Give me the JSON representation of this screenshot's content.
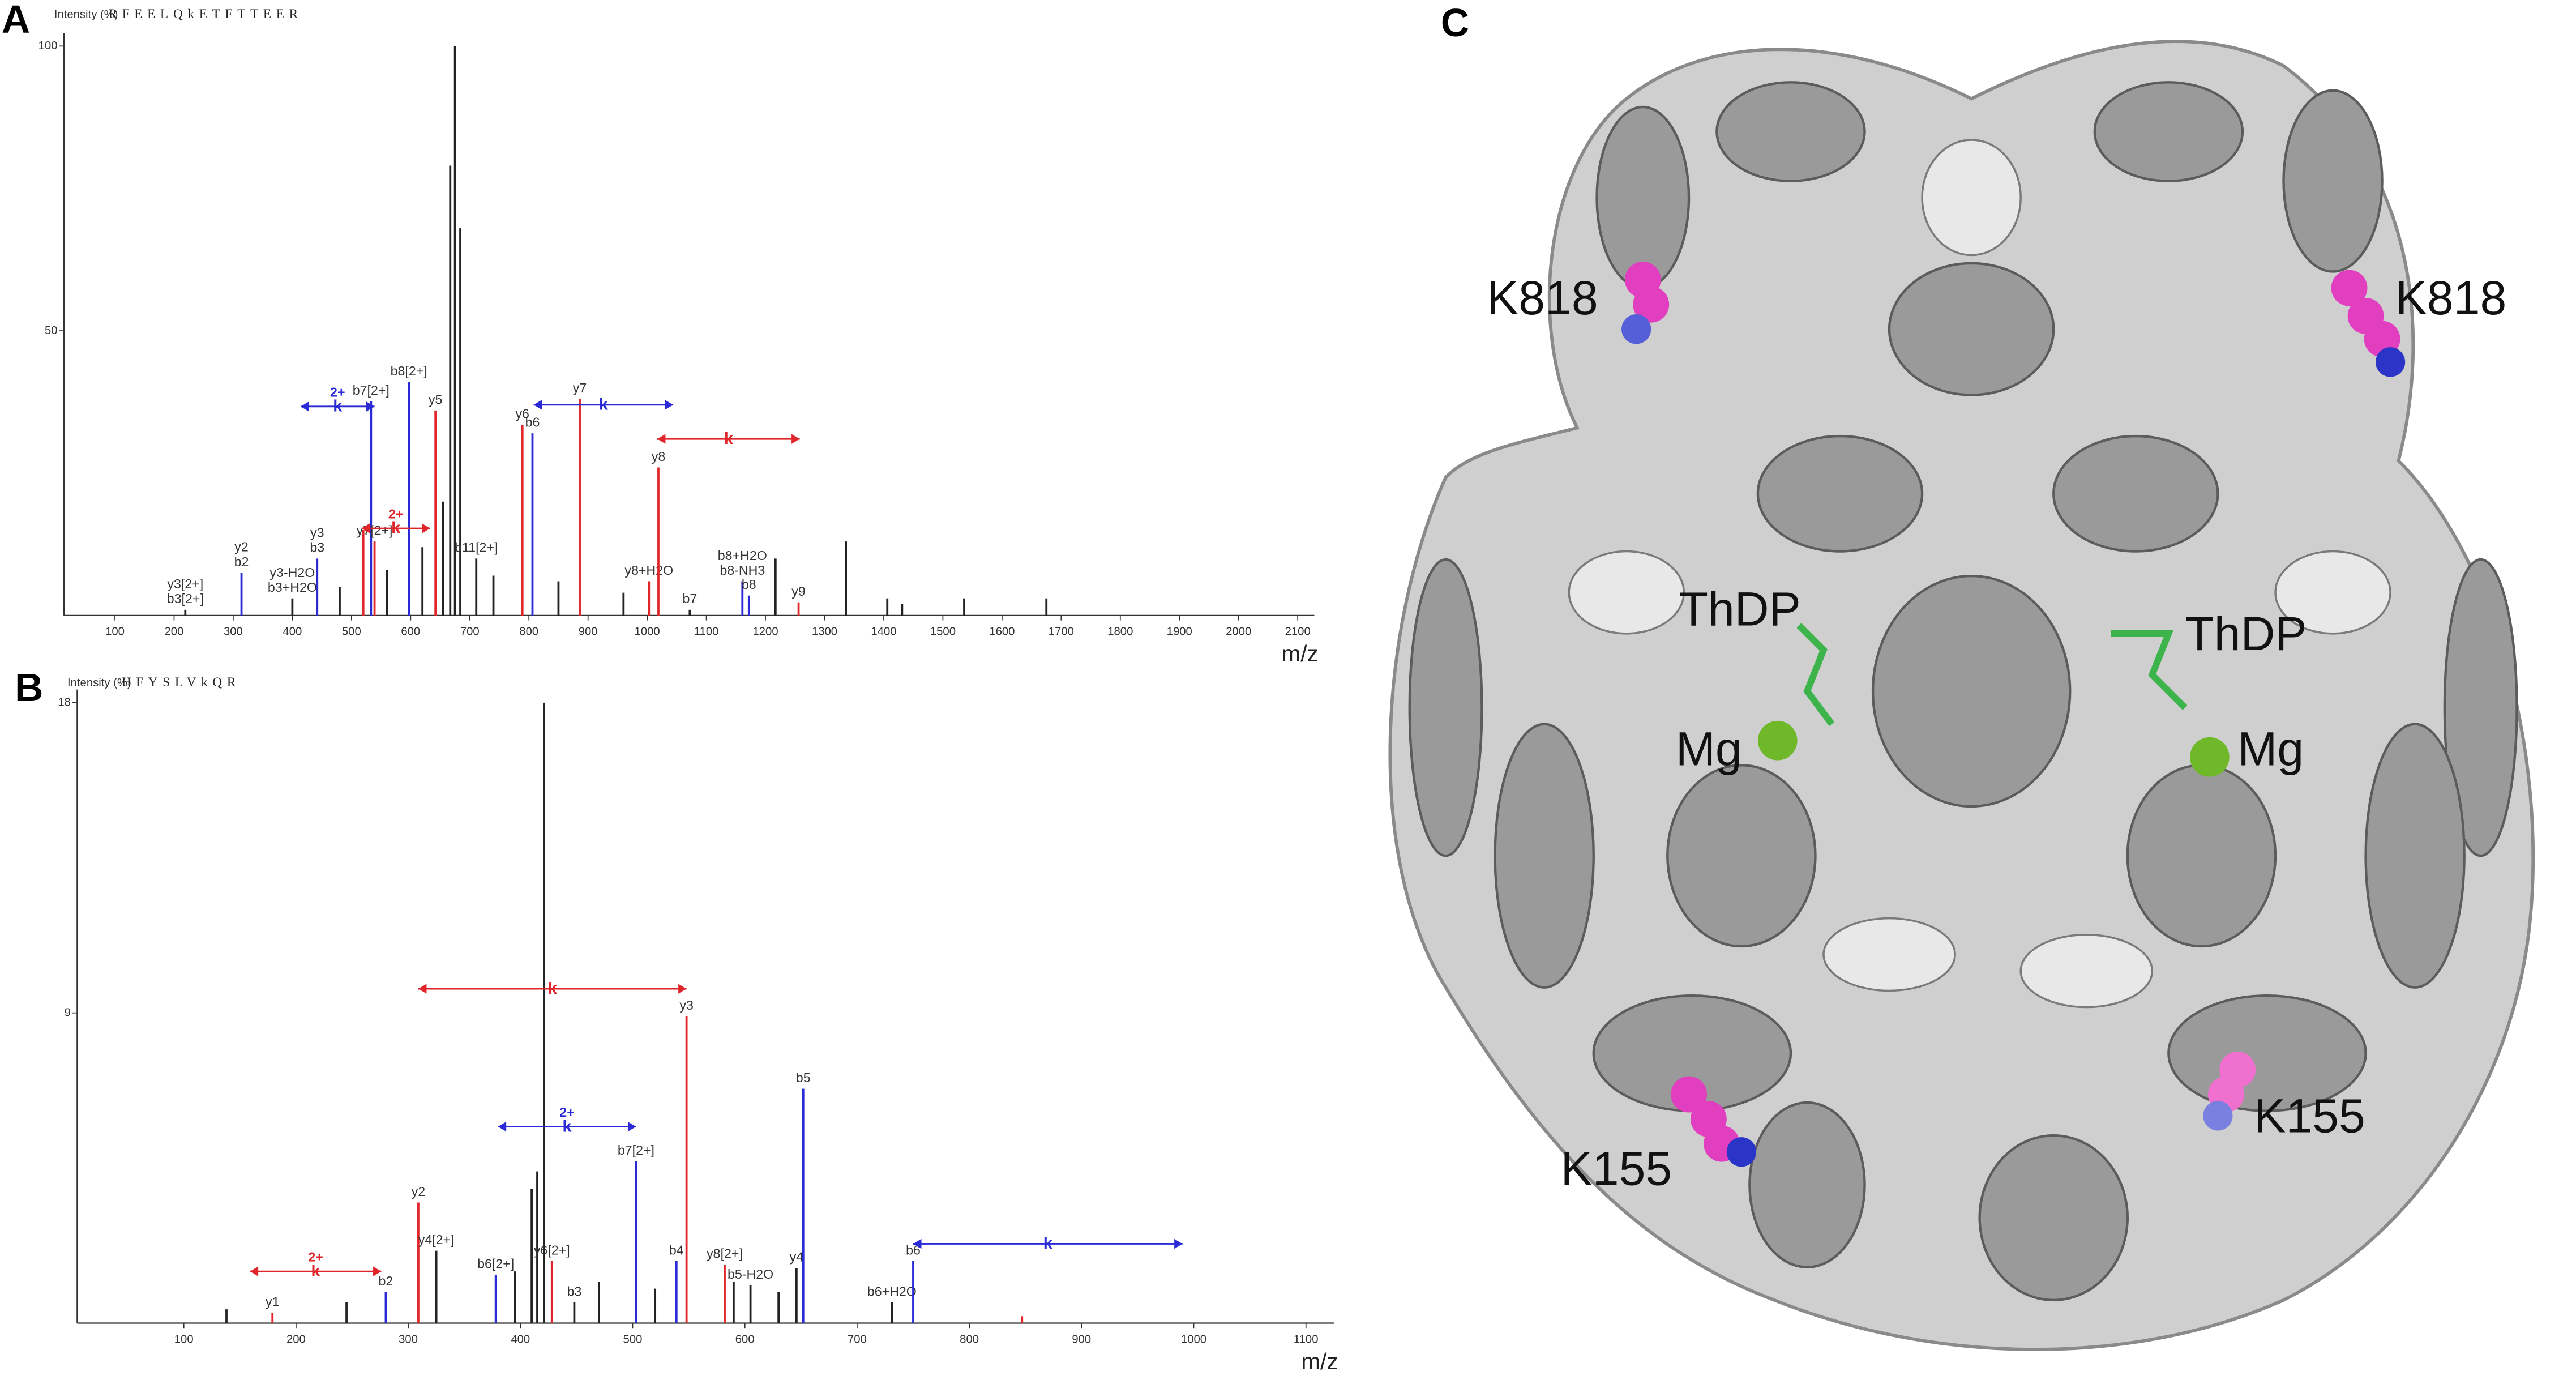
{
  "chart_data": [
    {
      "type": "spectrum",
      "panel": "A",
      "ylabel": "Intensity (%)",
      "sequence": "RFEELQkETFTTEER",
      "xlabel": "m/z",
      "xlim": [
        14,
        2128
      ],
      "ylim": [
        0,
        100
      ],
      "xticks": [
        100,
        200,
        300,
        400,
        500,
        600,
        700,
        800,
        900,
        1000,
        1100,
        1200,
        1300,
        1400,
        1500,
        1600,
        1700,
        1800,
        1900,
        2000,
        2100
      ],
      "yticks": [
        50,
        100
      ],
      "x": [
        219,
        314,
        400,
        442,
        533,
        539,
        597,
        642,
        667,
        675,
        684,
        711,
        789,
        806,
        886,
        1003,
        1019,
        1072,
        1161,
        1172,
        1217,
        1256,
        1336,
        1406,
        1431,
        1536,
        1675,
        480,
        520,
        560,
        620,
        655,
        740,
        850,
        960
      ],
      "values": [
        1,
        7.5,
        3,
        10,
        37.6,
        13,
        41,
        36,
        79,
        100,
        68,
        10,
        33.5,
        32,
        38,
        6,
        26,
        1,
        6,
        3.5,
        10,
        2.3,
        13,
        3,
        2,
        3,
        3,
        5,
        15,
        8,
        12,
        20,
        7,
        6,
        4
      ],
      "colors": [
        "#222222",
        "#2a2ad6",
        "#222222",
        "#2a2ad6",
        "#2a2ad6",
        "#e0262a",
        "#2a2ad6",
        "#e0262a",
        "#222222",
        "#222222",
        "#222222",
        "#222222",
        "#e0262a",
        "#2a2ad6",
        "#e0262a",
        "#e0262a",
        "#e0262a",
        "#222222",
        "#2a2ad6",
        "#2a2ad6",
        "#222222",
        "#e0262a",
        "#222222",
        "#222222",
        "#222222",
        "#222222",
        "#222222",
        "#222222",
        "#e0262a",
        "#222222",
        "#222222",
        "#222222",
        "#222222",
        "#222222",
        "#222222"
      ],
      "labels": [
        [
          "y3[2+]",
          "b3[2+]"
        ],
        [
          "y2",
          "b2"
        ],
        [
          "y3-H2O",
          "b3+H2O"
        ],
        [
          "y3",
          "b3"
        ],
        [
          "b7[2+]"
        ],
        [
          "y7[2+]"
        ],
        [
          "b8[2+]"
        ],
        [
          "y5"
        ],
        null,
        null,
        null,
        [
          "b11[2+]"
        ],
        [
          "y6"
        ],
        [
          "b6"
        ],
        [
          "y7"
        ],
        [
          "y8+H2O"
        ],
        [
          "y8"
        ],
        [
          "b7"
        ],
        [
          "b8+H2O",
          "b8-NH3"
        ],
        [
          "b8"
        ],
        null,
        [
          "y9"
        ],
        null,
        null,
        null,
        null,
        null,
        null,
        null,
        null,
        null,
        null,
        null,
        null,
        null
      ],
      "shifts": [
        {
          "from": 414,
          "to": 539,
          "y": 36.7,
          "label": "k",
          "charge": "2+",
          "color": "#2a2ad6"
        },
        {
          "from": 517,
          "to": 633,
          "y": 15.3,
          "label": "k",
          "charge": "2+",
          "color": "#e0262a"
        },
        {
          "from": 808,
          "to": 1044,
          "y": 37,
          "label": "k",
          "color": "#2a2ad6"
        },
        {
          "from": 1017,
          "to": 1258,
          "y": 31,
          "label": "k",
          "color": "#e0262a"
        }
      ]
    },
    {
      "type": "spectrum",
      "panel": "B",
      "ylabel": "Intensity (%)",
      "sequence": "HFYSLVkQR",
      "xlabel": "m/z",
      "xlim": [
        5,
        1125
      ],
      "ylim": [
        0,
        18
      ],
      "xticks": [
        100,
        200,
        300,
        400,
        500,
        600,
        700,
        800,
        900,
        1000,
        1100
      ],
      "yticks": [
        9,
        18
      ],
      "x": [
        138,
        179,
        245,
        280,
        309,
        325,
        378,
        415,
        421,
        428,
        448,
        503,
        539,
        548,
        582,
        605,
        646,
        652,
        731,
        750,
        847,
        410,
        395,
        470,
        520,
        590,
        630
      ],
      "values": [
        0.4,
        0.3,
        0.6,
        0.9,
        3.5,
        2.1,
        1.4,
        4.4,
        18,
        1.8,
        0.6,
        4.7,
        1.8,
        8.9,
        1.7,
        1.1,
        1.6,
        6.8,
        0.6,
        1.8,
        0.2,
        3.9,
        1.5,
        1.2,
        1,
        1.2,
        0.9
      ],
      "colors": [
        "#222222",
        "#e0262a",
        "#222222",
        "#2a2ad6",
        "#e0262a",
        "#222222",
        "#2a2ad6",
        "#222222",
        "#222222",
        "#e0262a",
        "#222222",
        "#2a2ad6",
        "#2a2ad6",
        "#e0262a",
        "#e0262a",
        "#222222",
        "#222222",
        "#2a2ad6",
        "#222222",
        "#2a2ad6",
        "#e0262a",
        "#222222",
        "#222222",
        "#222222",
        "#222222",
        "#222222",
        "#222222"
      ],
      "labels": [
        null,
        [
          "y1"
        ],
        null,
        [
          "b2"
        ],
        [
          "y2"
        ],
        [
          "y4[2+]"
        ],
        [
          "b6[2+]"
        ],
        null,
        null,
        [
          "y6[2+]"
        ],
        [
          "b3"
        ],
        [
          "b7[2+]"
        ],
        [
          "b4"
        ],
        [
          "y3"
        ],
        [
          "y8[2+]"
        ],
        [
          "b5-H2O"
        ],
        [
          "y4"
        ],
        [
          "b5"
        ],
        [
          "b6+H2O"
        ],
        [
          "b6"
        ],
        null,
        null,
        null,
        null,
        null,
        null,
        null
      ],
      "shifts": [
        {
          "from": 159,
          "to": 276,
          "y": 1.5,
          "label": "k",
          "charge": "2+",
          "color": "#e0262a"
        },
        {
          "from": 309,
          "to": 548,
          "y": 9.7,
          "label": "k",
          "color": "#e0262a"
        },
        {
          "from": 380,
          "to": 503,
          "y": 5.7,
          "label": "k",
          "charge": "2+",
          "color": "#2a2ad6"
        },
        {
          "from": 750,
          "to": 990,
          "y": 2.3,
          "label": "k",
          "color": "#2a2ad6"
        }
      ]
    }
  ],
  "structure": {
    "panel": "C",
    "labels": [
      "K818",
      "K818",
      "ThDP",
      "ThDP",
      "Mg",
      "Mg",
      "K155",
      "K155"
    ]
  }
}
